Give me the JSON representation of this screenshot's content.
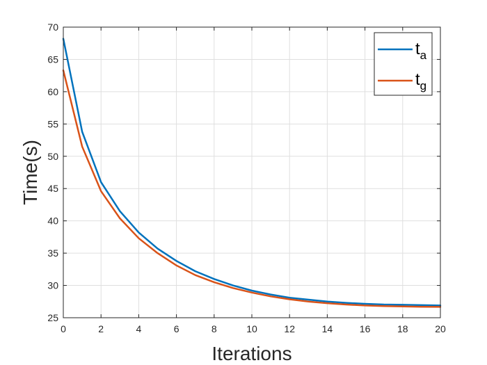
{
  "chart_data": {
    "type": "line",
    "title": "",
    "xlabel": "Iterations",
    "ylabel": "Time(s)",
    "xlim": [
      0,
      20
    ],
    "ylim": [
      25,
      70
    ],
    "xticks": [
      0,
      2,
      4,
      6,
      8,
      10,
      12,
      14,
      16,
      18,
      20
    ],
    "yticks": [
      25,
      30,
      35,
      40,
      45,
      50,
      55,
      60,
      65,
      70
    ],
    "grid": true,
    "legend_position": "top-right",
    "x": [
      0,
      1,
      2,
      3,
      4,
      5,
      6,
      7,
      8,
      9,
      10,
      11,
      12,
      13,
      14,
      15,
      16,
      17,
      18,
      19,
      20
    ],
    "series": [
      {
        "name": "t",
        "subscript": "a",
        "color": "#0072BD",
        "values": [
          68.2,
          53.8,
          46.0,
          41.5,
          38.2,
          35.7,
          33.8,
          32.2,
          31.0,
          30.0,
          29.2,
          28.6,
          28.1,
          27.8,
          27.5,
          27.3,
          27.15,
          27.05,
          27.0,
          26.95,
          26.9
        ]
      },
      {
        "name": "t",
        "subscript": "g",
        "color": "#D95319",
        "values": [
          63.3,
          51.5,
          44.6,
          40.4,
          37.3,
          35.0,
          33.1,
          31.6,
          30.5,
          29.6,
          28.9,
          28.3,
          27.85,
          27.5,
          27.25,
          27.05,
          26.9,
          26.8,
          26.75,
          26.7,
          26.68
        ]
      }
    ]
  }
}
